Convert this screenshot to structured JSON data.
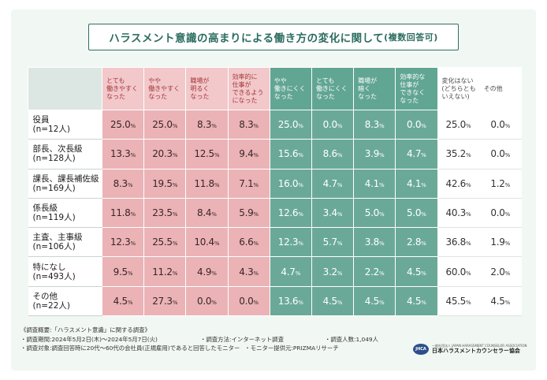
{
  "title": {
    "main": "ハラスメント意識の高まりによる働き方の変化に関して",
    "sub": "(複数回答可)"
  },
  "colors": {
    "red_header": "#f2c8cb",
    "red_cell": "#ebb3b6",
    "green_header": "#61a593",
    "green_cell": "#6aa998",
    "title_border": "#2f6f63"
  },
  "table": {
    "columns": [
      {
        "label": "とても\n働きやすく\nなった",
        "tone": "red"
      },
      {
        "label": "やや\n働きやすく\nなった",
        "tone": "red"
      },
      {
        "label": "職場が\n明るく\nなった",
        "tone": "red"
      },
      {
        "label": "効率的に\n仕事が\nできるよう\nになった",
        "tone": "red"
      },
      {
        "label": "やや\n働きにくく\nなった",
        "tone": "green"
      },
      {
        "label": "とても\n働きにくく\nなった",
        "tone": "green"
      },
      {
        "label": "職場が\n暗く\nなった",
        "tone": "green"
      },
      {
        "label": "効率的な\n仕事が\nできなく\nなった",
        "tone": "green"
      },
      {
        "label": "変化はない\n(どちらとも\nいえない)",
        "tone": "white"
      },
      {
        "label": "その他",
        "tone": "white"
      }
    ],
    "rows": [
      {
        "label": "役員",
        "n": "(n=12人)",
        "values": [
          "25.0",
          "25.0",
          "8.3",
          "8.3",
          "25.0",
          "0.0",
          "8.3",
          "0.0",
          "25.0",
          "0.0"
        ]
      },
      {
        "label": "部長、次長級",
        "n": "(n=128人)",
        "values": [
          "13.3",
          "20.3",
          "12.5",
          "9.4",
          "15.6",
          "8.6",
          "3.9",
          "4.7",
          "35.2",
          "0.0"
        ]
      },
      {
        "label": "課長、課長補佐級",
        "n": "(n=169人)",
        "values": [
          "8.3",
          "19.5",
          "11.8",
          "7.1",
          "16.0",
          "4.7",
          "4.1",
          "4.1",
          "42.6",
          "1.2"
        ]
      },
      {
        "label": "係長級",
        "n": "(n=119人)",
        "values": [
          "11.8",
          "23.5",
          "8.4",
          "5.9",
          "12.6",
          "3.4",
          "5.0",
          "5.0",
          "40.3",
          "0.0"
        ]
      },
      {
        "label": "主査、主事級",
        "n": "(n=106人)",
        "values": [
          "12.3",
          "25.5",
          "10.4",
          "6.6",
          "12.3",
          "5.7",
          "3.8",
          "2.8",
          "36.8",
          "1.9"
        ]
      },
      {
        "label": "特になし",
        "n": "(n=493人)",
        "values": [
          "9.5",
          "11.2",
          "4.9",
          "4.3",
          "4.7",
          "3.2",
          "2.2",
          "4.5",
          "60.0",
          "2.0"
        ]
      },
      {
        "label": "その他",
        "n": "(n=22人)",
        "values": [
          "4.5",
          "27.3",
          "0.0",
          "0.0",
          "13.6",
          "4.5",
          "4.5",
          "4.5",
          "45.5",
          "4.5"
        ]
      }
    ],
    "pct_unit": "%"
  },
  "notes": {
    "overview": "《調査概要:「ハラスメント意識」に関する調査》",
    "period": "・調査期間:2024年5月2日(木)〜2024年5月7日(火)",
    "method": "・調査方法:インターネット調査",
    "count": "・調査人数:1,049人",
    "target": "・調査対象:調査回答時に20代〜60代の会社員(正規雇用)であると回答したモニター",
    "provider": "・モニター提供元:PRIZMAリサーチ"
  },
  "logo": {
    "small_text": "一般社団法人 JAPAN HARASSMENT COUNSELOR ASSOCIATION",
    "name": "日本ハラスメントカウンセラー協会",
    "mark": "JHCA"
  }
}
